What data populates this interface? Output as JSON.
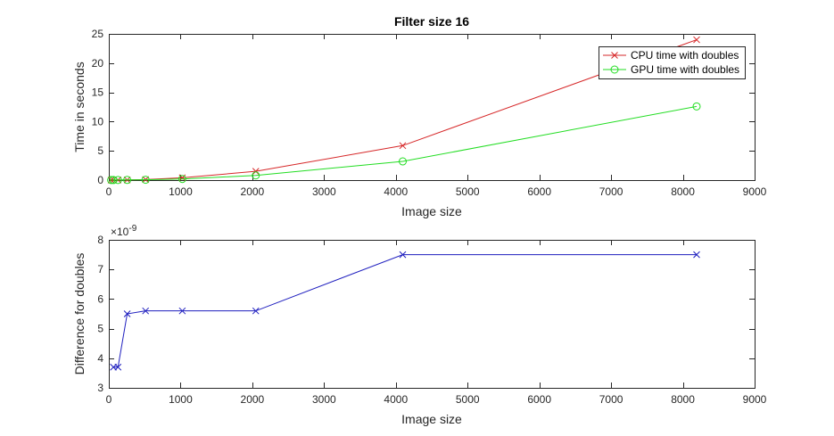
{
  "chart_data": [
    {
      "type": "line",
      "title": "Filter size 16",
      "xlabel": "Image size",
      "ylabel": "Time in seconds",
      "xlim": [
        0,
        9000
      ],
      "ylim": [
        0,
        25
      ],
      "xticks": [
        0,
        1000,
        2000,
        3000,
        4000,
        5000,
        6000,
        7000,
        8000,
        9000
      ],
      "yticks": [
        0,
        5,
        10,
        15,
        20,
        25
      ],
      "legend_position": "top-right",
      "series": [
        {
          "name": "CPU time with doubles",
          "color": "#d62728",
          "marker": "x",
          "x": [
            32,
            64,
            128,
            256,
            512,
            1024,
            2048,
            4096,
            8192
          ],
          "y": [
            0.01,
            0.01,
            0.02,
            0.03,
            0.1,
            0.4,
            1.5,
            5.9,
            24.0
          ]
        },
        {
          "name": "GPU time with doubles",
          "color": "#22dd22",
          "marker": "o",
          "x": [
            32,
            64,
            128,
            256,
            512,
            1024,
            2048,
            4096,
            8192
          ],
          "y": [
            0.01,
            0.01,
            0.02,
            0.03,
            0.06,
            0.2,
            0.8,
            3.2,
            12.6
          ]
        }
      ]
    },
    {
      "type": "line",
      "title": "",
      "xlabel": "Image size",
      "ylabel": "Difference for doubles",
      "y_exponent_label": "×10",
      "y_exponent_power": "-9",
      "xlim": [
        0,
        9000
      ],
      "ylim": [
        3,
        8
      ],
      "xticks": [
        0,
        1000,
        2000,
        3000,
        4000,
        5000,
        6000,
        7000,
        8000,
        9000
      ],
      "yticks": [
        3,
        4,
        5,
        6,
        7,
        8
      ],
      "series": [
        {
          "color": "#1f1fbf",
          "marker": "x",
          "x": [
            64,
            128,
            256,
            512,
            1024,
            2048,
            4096,
            8192
          ],
          "y": [
            3.7,
            3.7,
            5.5,
            5.6,
            5.6,
            5.6,
            7.5,
            7.5
          ]
        }
      ]
    }
  ]
}
